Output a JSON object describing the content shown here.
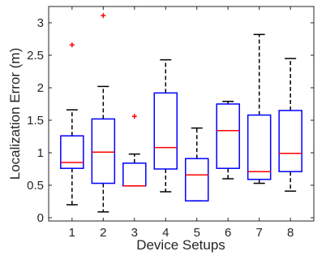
{
  "chart_data": {
    "type": "box",
    "title": "",
    "xlabel": "Device Setups",
    "ylabel": "Localization Error (m)",
    "ylim": [
      -0.05,
      3.25
    ],
    "yticks": [
      0,
      0.5,
      1,
      1.5,
      2,
      2.5,
      3
    ],
    "ytick_labels": [
      "0",
      "0.5",
      "1",
      "1.5",
      "2",
      "2.5",
      "3"
    ],
    "categories": [
      "1",
      "2",
      "3",
      "4",
      "5",
      "6",
      "7",
      "8"
    ],
    "grid": false,
    "colors": {
      "box": "#0000ff",
      "median": "#ff0000",
      "whisker": "#000000",
      "outlier": "#ff0000",
      "axis": "#262626"
    },
    "boxes": [
      {
        "label": "1",
        "whisker_low": 0.2,
        "q1": 0.76,
        "median": 0.85,
        "q3": 1.26,
        "whisker_high": 1.66,
        "outliers": [
          2.66
        ]
      },
      {
        "label": "2",
        "whisker_low": 0.09,
        "q1": 0.53,
        "median": 1.01,
        "q3": 1.52,
        "whisker_high": 2.02,
        "outliers": [
          3.11
        ]
      },
      {
        "label": "3",
        "whisker_low": 0.49,
        "q1": 0.49,
        "median": 0.49,
        "q3": 0.84,
        "whisker_high": 0.98,
        "outliers": [
          1.56
        ]
      },
      {
        "label": "4",
        "whisker_low": 0.4,
        "q1": 0.75,
        "median": 1.08,
        "q3": 1.92,
        "whisker_high": 2.43,
        "outliers": []
      },
      {
        "label": "5",
        "whisker_low": 0.26,
        "q1": 0.26,
        "median": 0.66,
        "q3": 0.91,
        "whisker_high": 1.38,
        "outliers": []
      },
      {
        "label": "6",
        "whisker_low": 0.6,
        "q1": 0.76,
        "median": 1.34,
        "q3": 1.75,
        "whisker_high": 1.79,
        "outliers": []
      },
      {
        "label": "7",
        "whisker_low": 0.53,
        "q1": 0.59,
        "median": 0.71,
        "q3": 1.58,
        "whisker_high": 2.82,
        "outliers": []
      },
      {
        "label": "8",
        "whisker_low": 0.41,
        "q1": 0.71,
        "median": 0.99,
        "q3": 1.65,
        "whisker_high": 2.45,
        "outliers": []
      }
    ]
  }
}
